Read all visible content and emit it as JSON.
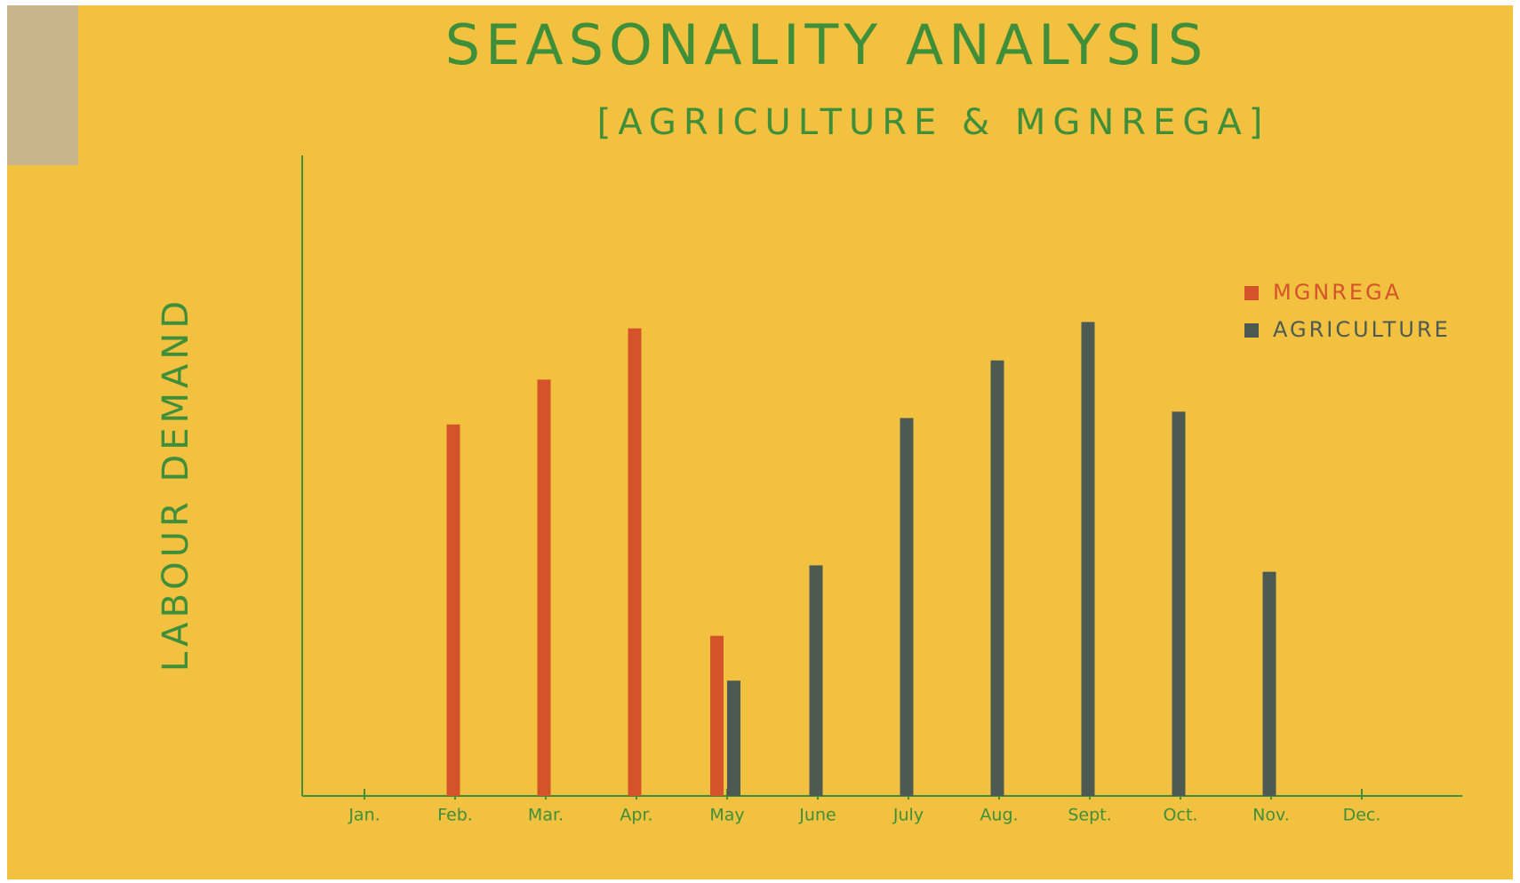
{
  "chart_data": {
    "type": "bar",
    "title": "SEASONALITY ANALYSIS",
    "subtitle": "[AGRICULTURE & MGNREGA]",
    "y_label": "LABOUR DEMAND",
    "categories": [
      "Jan.",
      "Feb.",
      "Mar.",
      "Apr.",
      "May",
      "June",
      "July",
      "Aug.",
      "Sept.",
      "Oct.",
      "Nov.",
      "Dec."
    ],
    "series": [
      {
        "name": "MGNREGA",
        "color": "#d5532b",
        "values": [
          null,
          58,
          65,
          73,
          25,
          null,
          null,
          null,
          null,
          null,
          null,
          null
        ]
      },
      {
        "name": "AGRICULTURE",
        "color": "#4d5a54",
        "values": [
          null,
          null,
          null,
          null,
          18,
          36,
          59,
          68,
          74,
          60,
          35,
          null
        ]
      }
    ],
    "ylim": [
      0,
      100
    ],
    "legend": "right"
  }
}
